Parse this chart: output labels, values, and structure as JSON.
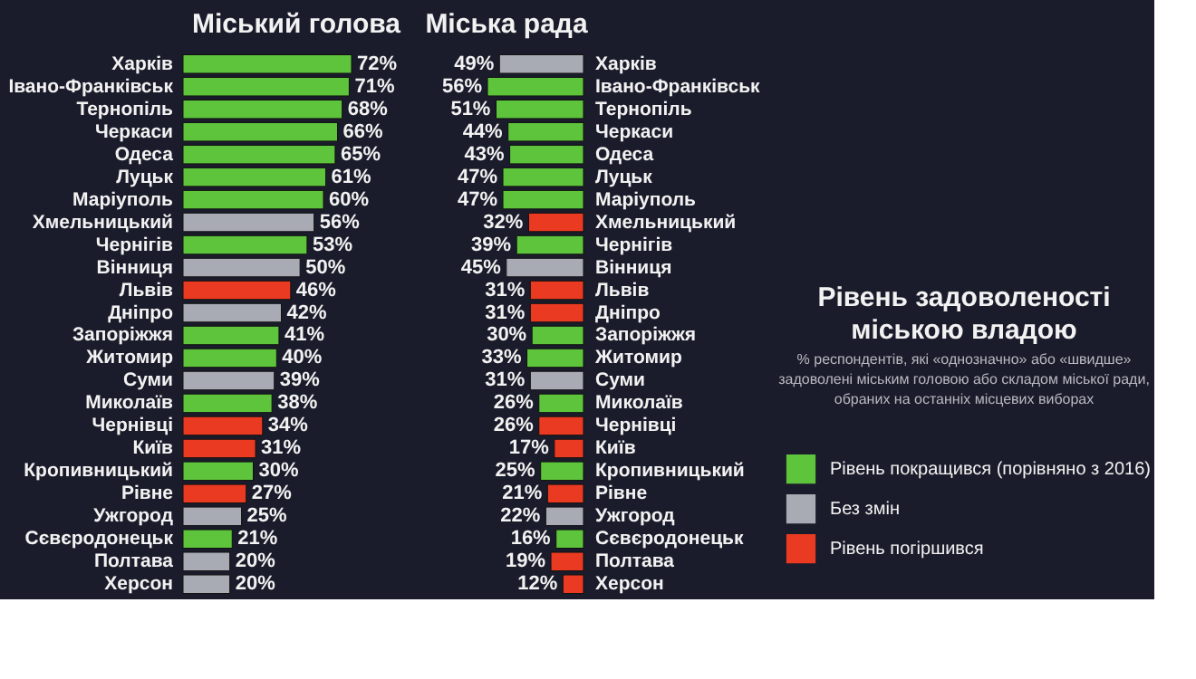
{
  "chart_data": [
    {
      "type": "bar",
      "title": "Міський голова",
      "orientation": "horizontal",
      "tick_labels": "y",
      "grid": false,
      "legend": false,
      "categories": [
        "Харків",
        "Івано-Франківськ",
        "Тернопіль",
        "Черкаси",
        "Одеса",
        "Луцьк",
        "Маріуполь",
        "Хмельницький",
        "Чернігів",
        "Вінниця",
        "Львів",
        "Дніпро",
        "Запоріжжя",
        "Житомир",
        "Суми",
        "Миколаїв",
        "Чернівці",
        "Київ",
        "Кропивницький",
        "Рівне",
        "Ужгород",
        "Сєвєродонецьк",
        "Полтава",
        "Херсон"
      ],
      "series": [
        {
          "color": "#5ec43c",
          "values": [
            72,
            71,
            68,
            66,
            65,
            61,
            60,
            null,
            53,
            null,
            null,
            null,
            41,
            40,
            null,
            38,
            null,
            null,
            30,
            null,
            null,
            21,
            null,
            null
          ],
          "value_labels": [
            "72%",
            "71%",
            "68%",
            "66%",
            "65%",
            "61%",
            "60%",
            null,
            "53%",
            null,
            null,
            null,
            "41%",
            "40%",
            null,
            "38%",
            null,
            null,
            "30%",
            null,
            null,
            "21%",
            null,
            null
          ]
        },
        {
          "color": "#a8abb4",
          "values": [
            null,
            null,
            null,
            null,
            null,
            null,
            null,
            56,
            null,
            50,
            null,
            42,
            null,
            null,
            39,
            null,
            null,
            null,
            null,
            null,
            25,
            null,
            20,
            20
          ],
          "value_labels": [
            null,
            null,
            null,
            null,
            null,
            null,
            null,
            "56%",
            null,
            "50%",
            null,
            "42%",
            null,
            null,
            "39%",
            null,
            null,
            null,
            null,
            null,
            "25%",
            null,
            "20%",
            "20%"
          ]
        },
        {
          "color": "#ea3a22",
          "values": [
            null,
            null,
            null,
            null,
            null,
            null,
            null,
            null,
            null,
            null,
            46,
            null,
            null,
            null,
            null,
            null,
            34,
            31,
            null,
            27,
            null,
            null,
            null,
            null
          ],
          "value_labels": [
            null,
            null,
            null,
            null,
            null,
            null,
            null,
            null,
            null,
            null,
            "46%",
            null,
            null,
            null,
            null,
            null,
            "34%",
            "31%",
            null,
            "27%",
            null,
            null,
            null,
            null
          ]
        }
      ]
    },
    {
      "type": "bar",
      "title": "Міська рада",
      "orientation": "horizontal",
      "tick_labels": "y",
      "grid": false,
      "legend": "right",
      "categories": [
        "Харків",
        "Івано-Франківськ",
        "Тернопіль",
        "Черкаси",
        "Одеса",
        "Луцьк",
        "Маріуполь",
        "Хмельницький",
        "Чернігів",
        "Вінниця",
        "Львів",
        "Дніпро",
        "Запоріжжя",
        "Житомир",
        "Суми",
        "Миколаїв",
        "Чернівці",
        "Київ",
        "Кропивницький",
        "Рівне",
        "Ужгород",
        "Сєвєродонецьк",
        "Полтава",
        "Херсон"
      ],
      "series": [
        {
          "name": "Рівень покращився (порівняно з 2016)",
          "color": "#5ec43c",
          "values": [
            null,
            56,
            51,
            44,
            43,
            47,
            47,
            null,
            39,
            null,
            null,
            null,
            30,
            33,
            null,
            26,
            null,
            null,
            25,
            null,
            null,
            16,
            null,
            null
          ],
          "value_labels": [
            null,
            "56%",
            "51%",
            "44%",
            "43%",
            "47%",
            "47%",
            null,
            "39%",
            null,
            null,
            null,
            "30%",
            "33%",
            null,
            "26%",
            null,
            null,
            "25%",
            null,
            null,
            "16%",
            null,
            null
          ]
        },
        {
          "name": "Без змін",
          "color": "#a8abb4",
          "values": [
            49,
            null,
            null,
            null,
            null,
            null,
            null,
            null,
            null,
            45,
            null,
            null,
            null,
            null,
            31,
            null,
            null,
            null,
            null,
            null,
            22,
            null,
            null,
            null
          ],
          "value_labels": [
            "49%",
            null,
            null,
            null,
            null,
            null,
            null,
            null,
            null,
            "45%",
            null,
            null,
            null,
            null,
            "31%",
            null,
            null,
            null,
            null,
            null,
            "22%",
            null,
            null,
            null
          ]
        },
        {
          "name": "Рівень погіршився",
          "color": "#ea3a22",
          "values": [
            null,
            null,
            null,
            null,
            null,
            null,
            null,
            32,
            null,
            null,
            31,
            31,
            null,
            null,
            null,
            null,
            26,
            17,
            null,
            21,
            null,
            null,
            19,
            12
          ],
          "value_labels": [
            null,
            null,
            null,
            null,
            null,
            null,
            null,
            "32%",
            null,
            null,
            "31%",
            "31%",
            null,
            null,
            null,
            null,
            "26%",
            "17%",
            null,
            "21%",
            null,
            null,
            "19%",
            "12%"
          ]
        }
      ]
    },
    {
      "type": "other",
      "title": "Рівень задоволеності міською владою",
      "subtitle": "% респондентів, які «однозначно» або «швидше» задоволені міським головою або складом міської ради, обраних на останніх місцевих виборах"
    }
  ]
}
